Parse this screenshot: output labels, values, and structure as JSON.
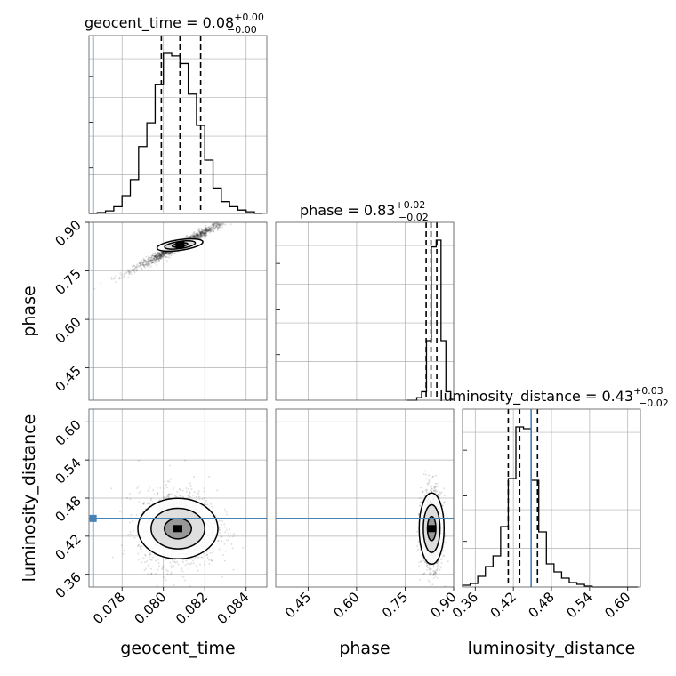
{
  "chart_data": {
    "type": "corner",
    "parameters": [
      "geocent_time",
      "phase",
      "luminosity_distance"
    ],
    "titles": [
      {
        "param": "geocent_time",
        "prefix": "geocent_time = ",
        "median": "0.08",
        "plus": "+0.00",
        "minus": "−0.00"
      },
      {
        "param": "phase",
        "prefix": "phase = ",
        "median": "0.83",
        "plus": "+0.02",
        "minus": "−0.02"
      },
      {
        "param": "luminosity_distance",
        "prefix": "luminosity_distance = ",
        "median": "0.43",
        "plus": "+0.03",
        "minus": "−0.02"
      }
    ],
    "axes": {
      "geocent_time": {
        "range": [
          0.0764,
          0.085
        ],
        "ticks": [
          0.078,
          0.08,
          0.082,
          0.084
        ],
        "tick_labels": [
          "0.078",
          "0.080",
          "0.082",
          "0.084"
        ]
      },
      "phase": {
        "range": [
          0.35,
          0.9
        ],
        "ticks": [
          0.45,
          0.6,
          0.75,
          0.9
        ],
        "tick_labels": [
          "0.45",
          "0.60",
          "0.75",
          "0.90"
        ]
      },
      "luminosity_distance": {
        "range": [
          0.34,
          0.62
        ],
        "ticks": [
          0.36,
          0.42,
          0.48,
          0.54,
          0.6
        ],
        "tick_labels": [
          "0.36",
          "0.42",
          "0.48",
          "0.54",
          "0.60"
        ]
      }
    },
    "truths": {
      "geocent_time": 0.0766,
      "phase": null,
      "luminosity_distance": 0.448
    },
    "quantiles": {
      "geocent_time": [
        0.0799,
        0.0808,
        0.0818
      ],
      "phase": [
        0.815,
        0.83,
        0.848
      ],
      "luminosity_distance": [
        0.412,
        0.43,
        0.458
      ]
    },
    "histograms": {
      "geocent_time": {
        "edges": [
          0.0764,
          0.0768,
          0.0772,
          0.0776,
          0.078,
          0.0784,
          0.0788,
          0.0792,
          0.0796,
          0.08,
          0.0804,
          0.0808,
          0.0812,
          0.0816,
          0.082,
          0.0824,
          0.0828,
          0.0832,
          0.0836,
          0.084,
          0.0844,
          0.0848
        ],
        "counts": [
          0,
          1,
          3,
          8,
          21,
          40,
          79,
          107,
          152,
          189,
          186,
          177,
          141,
          104,
          63,
          30,
          14,
          8,
          4,
          2,
          0
        ]
      },
      "phase": {
        "edges": [
          0.756,
          0.771,
          0.786,
          0.801,
          0.816,
          0.831,
          0.846,
          0.861,
          0.876,
          0.891,
          0.906
        ],
        "counts": [
          0,
          0,
          3,
          10,
          70,
          180,
          188,
          70,
          10,
          1
        ]
      },
      "luminosity_distance": {
        "edges": [
          0.34,
          0.352,
          0.364,
          0.376,
          0.388,
          0.4,
          0.412,
          0.424,
          0.436,
          0.448,
          0.46,
          0.472,
          0.484,
          0.496,
          0.508,
          0.52,
          0.532,
          0.544,
          0.556,
          0.568,
          0.58,
          0.592,
          0.604,
          0.616
        ],
        "counts": [
          2,
          4,
          12,
          23,
          35,
          68,
          122,
          180,
          178,
          120,
          62,
          26,
          17,
          10,
          5,
          3,
          1,
          0,
          0,
          0,
          0,
          0,
          0
        ]
      }
    },
    "scatter_samples": 1500,
    "contour_levels": 3
  }
}
